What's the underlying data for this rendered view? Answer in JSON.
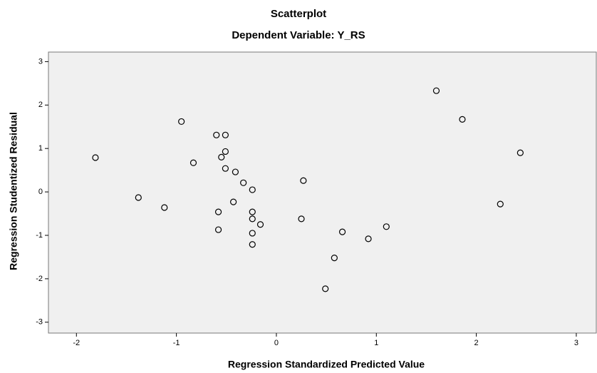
{
  "chart_data": {
    "type": "scatter",
    "title": "Scatterplot",
    "subtitle": "Dependent Variable: Y_RS",
    "x_label": "Regression Standardized Predicted Value",
    "y_label": "Regression Studentized Residual",
    "x": [
      -1.81,
      -1.38,
      -1.12,
      -0.95,
      -0.83,
      -0.6,
      -0.51,
      -0.55,
      -0.51,
      -0.51,
      -0.41,
      -0.33,
      -0.24,
      -0.43,
      -0.58,
      -0.58,
      -0.24,
      -0.24,
      -0.16,
      -0.24,
      -0.24,
      0.27,
      0.25,
      0.66,
      0.58,
      0.49,
      0.92,
      1.1,
      1.6,
      1.86,
      2.44,
      2.24
    ],
    "values": [
      0.79,
      -0.13,
      -0.36,
      1.62,
      0.67,
      1.31,
      1.31,
      0.8,
      0.93,
      0.54,
      0.46,
      0.21,
      0.05,
      -0.23,
      -0.46,
      -0.87,
      -0.46,
      -0.62,
      -0.75,
      -0.95,
      -1.21,
      0.26,
      -0.62,
      -0.92,
      -1.52,
      -2.23,
      -1.08,
      -0.8,
      2.33,
      1.67,
      0.9,
      -0.28
    ],
    "color": "#000000",
    "xlim": [
      -2.28,
      3.2
    ],
    "ylim": [
      -3.25,
      3.22
    ],
    "xticks": [
      -2,
      -1,
      0,
      1,
      2,
      3
    ],
    "yticks": [
      -3,
      -2,
      -1,
      0,
      1,
      2,
      3
    ]
  }
}
